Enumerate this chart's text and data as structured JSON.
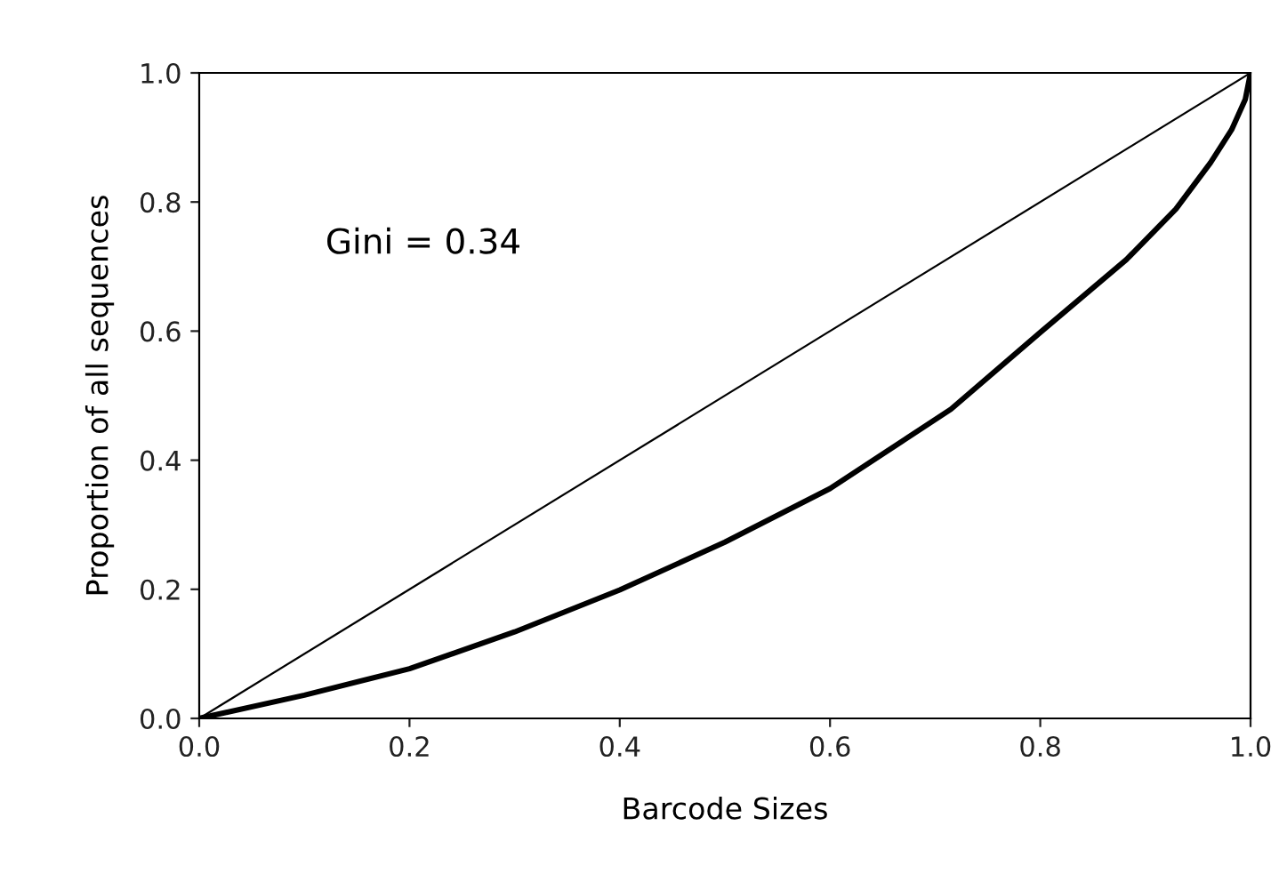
{
  "chart_data": {
    "type": "line",
    "xlabel": "Barcode Sizes",
    "ylabel": "Proportion of all sequences",
    "annotations": [
      "Gini = 0.34"
    ],
    "xlim": [
      0,
      1
    ],
    "ylim": [
      0,
      1
    ],
    "xticks": [
      {
        "value": 0,
        "label": "0.0"
      },
      {
        "value": 0.2,
        "label": "0.2"
      },
      {
        "value": 0.4,
        "label": "0.4"
      },
      {
        "value": 0.6,
        "label": "0.6"
      },
      {
        "value": 0.8,
        "label": "0.8"
      },
      {
        "value": 1,
        "label": "1.0"
      }
    ],
    "yticks": [
      {
        "value": 0,
        "label": "0.0"
      },
      {
        "value": 0.2,
        "label": "0.2"
      },
      {
        "value": 0.4,
        "label": "0.4"
      },
      {
        "value": 0.6,
        "label": "0.6"
      },
      {
        "value": 0.8,
        "label": "0.8"
      },
      {
        "value": 1,
        "label": "1.0"
      }
    ],
    "grid": false,
    "legend": false,
    "series": [
      {
        "color": "#000000",
        "x": [
          0,
          1
        ],
        "values": [
          0,
          1
        ]
      },
      {
        "color": "#000000",
        "x": [
          0,
          0.1,
          0.2,
          0.3,
          0.4,
          0.5,
          0.6,
          0.715,
          0.8,
          0.882,
          0.929,
          0.962,
          0.982,
          0.995,
          1
        ],
        "values": [
          0,
          0.036,
          0.077,
          0.134,
          0.199,
          0.273,
          0.356,
          0.479,
          0.598,
          0.711,
          0.789,
          0.861,
          0.912,
          0.959,
          1
        ]
      }
    ]
  }
}
